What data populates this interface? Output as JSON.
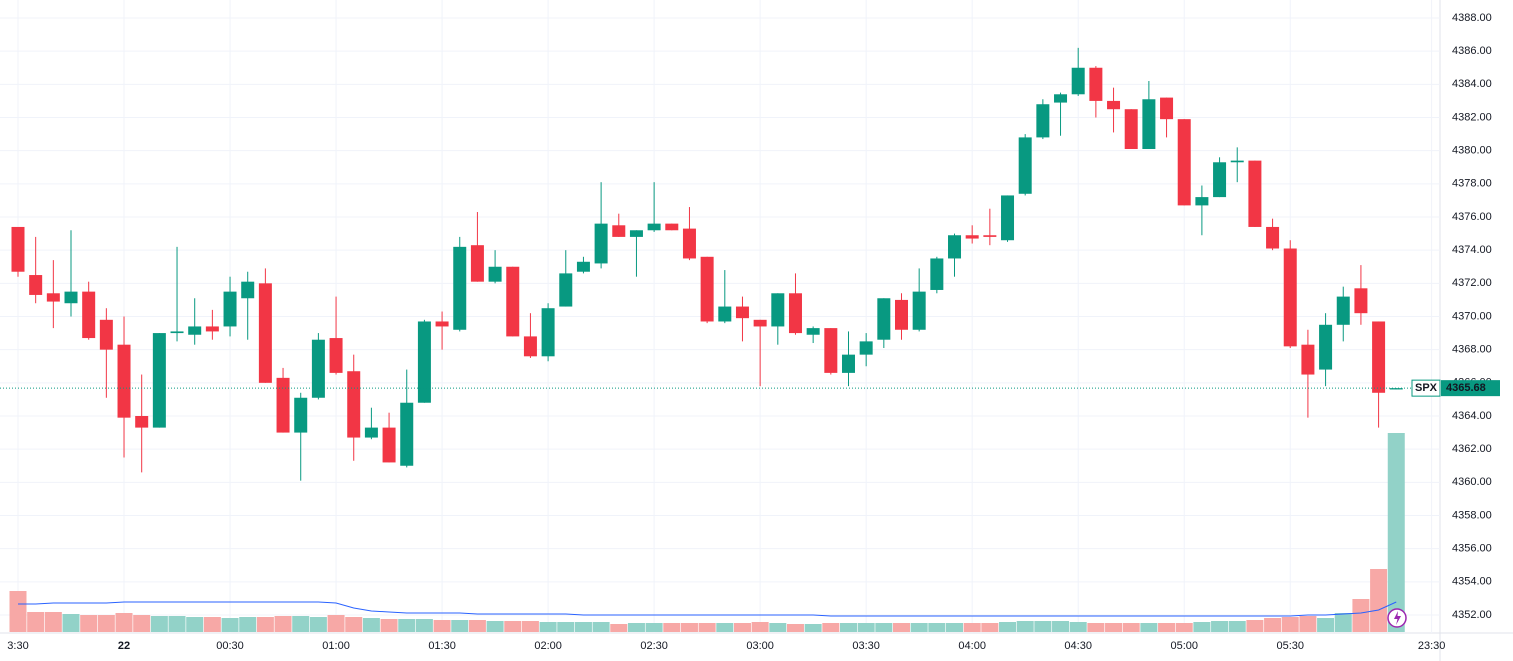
{
  "chart_data": {
    "type": "candlestick",
    "symbol": "SPX",
    "last_price": 4365.68,
    "up_color": "#089981",
    "down_color": "#f23645",
    "volume_up_color": "#92d2c8",
    "volume_down_color": "#f7a8a6",
    "volume_ma_color": "#2962ff",
    "grid": true,
    "ylim": [
      4352,
      4388
    ],
    "yticks": [
      {
        "value": 4352,
        "label": "4352.00"
      },
      {
        "value": 4354,
        "label": "4354.00"
      },
      {
        "value": 4356,
        "label": "4356.00"
      },
      {
        "value": 4358,
        "label": "4358.00"
      },
      {
        "value": 4360,
        "label": "4360.00"
      },
      {
        "value": 4362,
        "label": "4362.00"
      },
      {
        "value": 4364,
        "label": "4364.00"
      },
      {
        "value": 4366,
        "label": "4366.00"
      },
      {
        "value": 4368,
        "label": "4368.00"
      },
      {
        "value": 4370,
        "label": "4370.00"
      },
      {
        "value": 4372,
        "label": "4372.00"
      },
      {
        "value": 4374,
        "label": "4374.00"
      },
      {
        "value": 4376,
        "label": "4376.00"
      },
      {
        "value": 4378,
        "label": "4378.00"
      },
      {
        "value": 4380,
        "label": "4380.00"
      },
      {
        "value": 4382,
        "label": "4382.00"
      },
      {
        "value": 4384,
        "label": "4384.00"
      },
      {
        "value": 4386,
        "label": "4386.00"
      },
      {
        "value": 4388,
        "label": "4388.00"
      }
    ],
    "xticks": [
      {
        "value": 0,
        "label": "3:30"
      },
      {
        "value": 6,
        "label": "22"
      },
      {
        "value": 12,
        "label": "00:30"
      },
      {
        "value": 18,
        "label": "01:00"
      },
      {
        "value": 24,
        "label": "01:30"
      },
      {
        "value": 30,
        "label": "02:00"
      },
      {
        "value": 36,
        "label": "02:30"
      },
      {
        "value": 42,
        "label": "03:00"
      },
      {
        "value": 48,
        "label": "03:30"
      },
      {
        "value": 54,
        "label": "04:00"
      },
      {
        "value": 60,
        "label": "04:30"
      },
      {
        "value": 66,
        "label": "05:00"
      },
      {
        "value": 72,
        "label": "05:30"
      },
      {
        "value": 80,
        "label": "23:30"
      }
    ],
    "open": [
      4375.4,
      4372.5,
      4371.4,
      4370.8,
      4371.5,
      4369.8,
      4368.3,
      4364.0,
      4363.3,
      4369.0,
      4368.9,
      4369.4,
      4369.4,
      4371.1,
      4372.0,
      4366.3,
      4363.0,
      4365.1,
      4368.7,
      4366.7,
      4362.7,
      4363.3,
      4361.0,
      4364.8,
      4369.7,
      4369.2,
      4374.3,
      4372.1,
      4373.0,
      4368.8,
      4367.6,
      4370.6,
      4372.7,
      4373.2,
      4375.5,
      4374.8,
      4375.2,
      4375.6,
      4375.3,
      4373.6,
      4369.7,
      4370.6,
      4369.8,
      4369.4,
      4371.4,
      4368.9,
      4369.3,
      4366.6,
      4367.7,
      4368.6,
      4371.0,
      4369.2,
      4371.6,
      4373.5,
      4374.9,
      4374.9,
      4374.6,
      4377.4,
      4380.8,
      4382.9,
      4383.4,
      4385.0,
      4383.0,
      4382.5,
      4380.1,
      4383.2,
      4381.9,
      4376.7,
      4377.2,
      4379.3,
      4379.4,
      4375.4,
      4374.1,
      4368.3,
      4366.8,
      4369.5,
      4371.7,
      4369.7,
      4365.6
    ],
    "high": [
      4375.4,
      4374.8,
      4373.4,
      4375.2,
      4372.1,
      4370.5,
      4370.0,
      4366.5,
      4369.0,
      4374.2,
      4371.1,
      4370.4,
      4372.4,
      4372.7,
      4372.9,
      4366.9,
      4365.4,
      4369.0,
      4371.2,
      4367.7,
      4364.5,
      4364.2,
      4366.8,
      4369.8,
      4370.3,
      4374.8,
      4376.3,
      4374.0,
      4373.0,
      4370.2,
      4370.8,
      4374.0,
      4373.6,
      4378.1,
      4376.2,
      4375.2,
      4378.1,
      4375.6,
      4376.6,
      4373.6,
      4372.8,
      4371.2,
      4369.8,
      4371.4,
      4372.6,
      4369.4,
      4369.3,
      4369.1,
      4369.0,
      4371.1,
      4371.4,
      4372.9,
      4373.6,
      4375.0,
      4375.5,
      4376.5,
      4377.3,
      4381.0,
      4383.1,
      4383.5,
      4386.2,
      4385.1,
      4383.8,
      4382.5,
      4384.2,
      4383.2,
      4381.9,
      4377.9,
      4379.6,
      4380.2,
      4379.4,
      4375.9,
      4374.6,
      4369.2,
      4370.2,
      4371.8,
      4373.1,
      4369.7,
      4365.68
    ],
    "low": [
      4372.4,
      4370.8,
      4369.3,
      4370.0,
      4368.6,
      4365.1,
      4361.5,
      4360.6,
      4363.3,
      4368.5,
      4368.3,
      4368.6,
      4368.8,
      4368.6,
      4366.0,
      4363.0,
      4360.1,
      4365.0,
      4366.5,
      4361.3,
      4362.6,
      4361.2,
      4360.9,
      4364.8,
      4368.0,
      4369.1,
      4372.1,
      4372.0,
      4368.8,
      4367.5,
      4367.3,
      4370.6,
      4372.6,
      4372.9,
      4374.8,
      4372.4,
      4375.1,
      4375.2,
      4373.4,
      4369.6,
      4369.6,
      4368.5,
      4365.8,
      4368.3,
      4368.9,
      4368.4,
      4366.5,
      4365.8,
      4367.0,
      4368.1,
      4368.6,
      4369.1,
      4371.4,
      4372.4,
      4374.4,
      4374.3,
      4374.5,
      4377.3,
      4380.7,
      4380.9,
      4383.3,
      4382.0,
      4381.1,
      4380.1,
      4380.1,
      4380.8,
      4376.7,
      4374.9,
      4377.2,
      4378.1,
      4375.4,
      4374.0,
      4368.1,
      4363.9,
      4365.8,
      4368.5,
      4369.5,
      4363.3,
      4365.6
    ],
    "close": [
      4372.7,
      4371.3,
      4370.9,
      4371.5,
      4368.7,
      4368.0,
      4363.9,
      4363.3,
      4369.0,
      4369.1,
      4369.4,
      4369.1,
      4371.5,
      4372.1,
      4366.0,
      4363.0,
      4365.1,
      4368.6,
      4366.6,
      4362.7,
      4363.3,
      4361.2,
      4364.8,
      4369.7,
      4369.4,
      4374.2,
      4372.1,
      4373.0,
      4368.8,
      4367.6,
      4370.5,
      4372.6,
      4373.3,
      4375.6,
      4374.8,
      4375.2,
      4375.6,
      4375.2,
      4373.5,
      4369.7,
      4370.6,
      4369.9,
      4369.4,
      4371.4,
      4369.0,
      4369.3,
      4366.6,
      4367.7,
      4368.5,
      4371.1,
      4369.2,
      4371.5,
      4373.5,
      4374.9,
      4374.7,
      4374.8,
      4377.3,
      4380.8,
      4382.8,
      4383.4,
      4385.0,
      4383.0,
      4382.5,
      4380.1,
      4383.1,
      4381.9,
      4376.7,
      4377.2,
      4379.3,
      4379.4,
      4375.4,
      4374.1,
      4368.2,
      4366.5,
      4369.5,
      4371.2,
      4370.2,
      4365.4,
      4365.68
    ],
    "volume": [
      41,
      20,
      20,
      18,
      17,
      17,
      19,
      17,
      16,
      16,
      15,
      15,
      14,
      15,
      15,
      16,
      16,
      15,
      17,
      15,
      14,
      13,
      13,
      13,
      12,
      12,
      12,
      11,
      11,
      11,
      10,
      10,
      10,
      10,
      8,
      9,
      9,
      9,
      9,
      9,
      9,
      9,
      10,
      9,
      8,
      8,
      9,
      9,
      9,
      9,
      9,
      9,
      9,
      9,
      9,
      9,
      10,
      11,
      11,
      11,
      10,
      9,
      9,
      9,
      9,
      9,
      9,
      10,
      11,
      11,
      12,
      14,
      15,
      16,
      14,
      19,
      33,
      63,
      199
    ],
    "volume_ma": [
      28,
      28,
      29,
      29,
      29,
      29,
      30,
      30,
      30,
      30,
      30,
      30,
      30,
      30,
      30,
      30,
      30,
      30,
      29,
      24,
      21,
      20,
      19,
      19,
      19,
      19,
      18,
      18,
      18,
      18,
      18,
      18,
      17,
      17,
      17,
      17,
      17,
      17,
      17,
      17,
      17,
      17,
      17,
      17,
      17,
      17,
      16,
      16,
      16,
      16,
      16,
      16,
      16,
      16,
      16,
      16,
      16,
      16,
      16,
      16,
      16,
      16,
      16,
      16,
      16,
      16,
      16,
      16,
      16,
      16,
      16,
      16,
      16,
      17,
      17,
      18,
      19,
      22,
      30
    ]
  }
}
